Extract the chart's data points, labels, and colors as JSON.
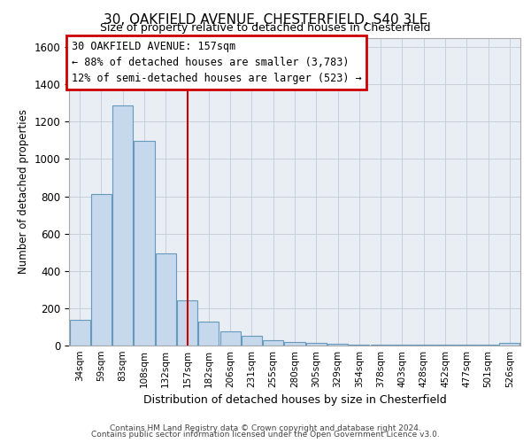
{
  "title_line1": "30, OAKFIELD AVENUE, CHESTERFIELD, S40 3LE",
  "title_line2": "Size of property relative to detached houses in Chesterfield",
  "xlabel": "Distribution of detached houses by size in Chesterfield",
  "ylabel": "Number of detached properties",
  "categories": [
    "34sqm",
    "59sqm",
    "83sqm",
    "108sqm",
    "132sqm",
    "157sqm",
    "182sqm",
    "206sqm",
    "231sqm",
    "255sqm",
    "280sqm",
    "305sqm",
    "329sqm",
    "354sqm",
    "378sqm",
    "403sqm",
    "428sqm",
    "452sqm",
    "477sqm",
    "501sqm",
    "526sqm"
  ],
  "values": [
    140,
    810,
    1285,
    1095,
    495,
    240,
    130,
    75,
    50,
    30,
    20,
    15,
    10,
    5,
    3,
    3,
    3,
    3,
    3,
    3,
    15
  ],
  "bar_color": "#c5d8ec",
  "bar_edge_color": "#6699bb",
  "vline_x_index": 5,
  "vline_color": "#cc0000",
  "annotation_text": "30 OAKFIELD AVENUE: 157sqm\n← 88% of detached houses are smaller (3,783)\n12% of semi-detached houses are larger (523) →",
  "annotation_box_color": "#ffffff",
  "annotation_box_edge_color": "#cc0000",
  "ylim": [
    0,
    1650
  ],
  "yticks": [
    0,
    200,
    400,
    600,
    800,
    1000,
    1200,
    1400,
    1600
  ],
  "footer_line1": "Contains HM Land Registry data © Crown copyright and database right 2024.",
  "footer_line2": "Contains public sector information licensed under the Open Government Licence v3.0.",
  "grid_color": "#c8d0da",
  "background_color": "#e8eef4"
}
